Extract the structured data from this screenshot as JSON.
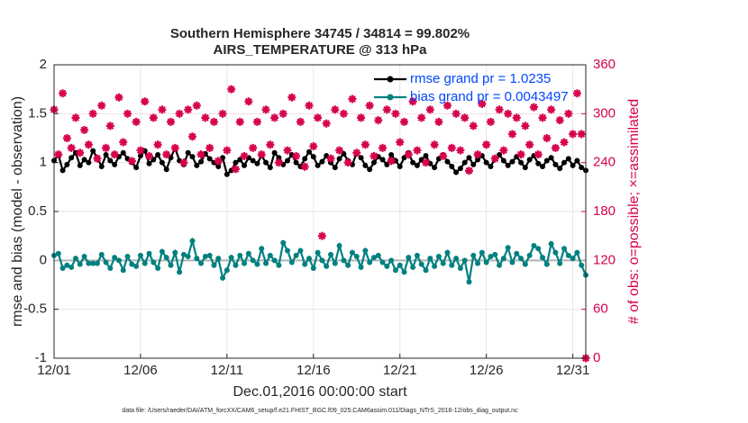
{
  "chart_data": {
    "type": "line",
    "title": "Southern Hemisphere 34745 / 34814 = 99.802%",
    "subtitle": "AIRS_TEMPERATURE @ 313 hPa",
    "xlabel": "Dec.01,2016 00:00:00 start",
    "ylabel": "rmse and bias (model - observation)",
    "y2label": "# of obs: o=possible; ×=assimilated",
    "footnote": "data file: /Users/raeder/DAI/ATM_forcXX/CAM6_setup/f.e21.FHIST_BGC.f09_025.CAM6assim.011/Diags_NTrS_2016-12/obs_diag_output.nc",
    "legend": "northeast",
    "grid": true,
    "xlim": [
      0,
      30.75
    ],
    "xticks": [
      {
        "value": 0,
        "label": "12/01"
      },
      {
        "value": 5,
        "label": "12/06"
      },
      {
        "value": 10,
        "label": "12/11"
      },
      {
        "value": 15,
        "label": "12/16"
      },
      {
        "value": 20,
        "label": "12/21"
      },
      {
        "value": 25,
        "label": "12/26"
      },
      {
        "value": 30,
        "label": "12/31"
      }
    ],
    "ylim": [
      -1,
      2
    ],
    "yticks": [
      -1,
      -0.5,
      0,
      0.5,
      1,
      1.5,
      2
    ],
    "y2lim": [
      0,
      360
    ],
    "y2ticks": [
      0,
      60,
      120,
      180,
      240,
      300,
      360
    ],
    "x": [
      0,
      0.25,
      0.5,
      0.75,
      1,
      1.25,
      1.5,
      1.75,
      2,
      2.25,
      2.5,
      2.75,
      3,
      3.25,
      3.5,
      3.75,
      4,
      4.25,
      4.5,
      4.75,
      5,
      5.25,
      5.5,
      5.75,
      6,
      6.25,
      6.5,
      6.75,
      7,
      7.25,
      7.5,
      7.75,
      8,
      8.25,
      8.5,
      8.75,
      9,
      9.25,
      9.5,
      9.75,
      10,
      10.25,
      10.5,
      10.75,
      11,
      11.25,
      11.5,
      11.75,
      12,
      12.25,
      12.5,
      12.75,
      13,
      13.25,
      13.5,
      13.75,
      14,
      14.25,
      14.5,
      14.75,
      15,
      15.25,
      15.5,
      15.75,
      16,
      16.25,
      16.5,
      16.75,
      17,
      17.25,
      17.5,
      17.75,
      18,
      18.25,
      18.5,
      18.75,
      19,
      19.25,
      19.5,
      19.75,
      20,
      20.25,
      20.5,
      20.75,
      21,
      21.25,
      21.5,
      21.75,
      22,
      22.25,
      22.5,
      22.75,
      23,
      23.25,
      23.5,
      23.75,
      24,
      24.25,
      24.5,
      24.75,
      25,
      25.25,
      25.5,
      25.75,
      26,
      26.25,
      26.5,
      26.75,
      27,
      27.25,
      27.5,
      27.75,
      28,
      28.25,
      28.5,
      28.75,
      29,
      29.25,
      29.5,
      29.75,
      30,
      30.25,
      30.5,
      30.75
    ],
    "series": [
      {
        "name": "rmse grand pr = 1.0235",
        "color": "#000000",
        "values": [
          1.02,
          1.08,
          0.92,
          0.98,
          1.05,
          1.1,
          0.97,
          1.03,
          1.0,
          1.12,
          1.05,
          0.96,
          1.08,
          1.02,
          0.98,
          1.06,
          1.1,
          1.04,
          1.0,
          0.95,
          1.07,
          1.12,
          0.99,
          1.03,
          1.08,
          1.0,
          0.93,
          1.05,
          1.15,
          1.02,
          0.98,
          1.1,
          1.06,
          0.97,
          1.01,
          1.09,
          1.04,
          1.0,
          0.96,
          1.05,
          0.88,
          0.92,
          1.0,
          1.03,
          0.97,
          1.05,
          1.02,
          0.99,
          1.07,
          1.0,
          0.95,
          1.1,
          1.05,
          0.98,
          1.02,
          1.08,
          1.0,
          0.96,
          1.04,
          1.11,
          1.06,
          0.97,
          1.01,
          1.07,
          1.0,
          0.95,
          1.04,
          1.09,
          1.02,
          0.98,
          1.1,
          1.05,
          0.97,
          0.93,
          1.0,
          1.06,
          1.03,
          0.98,
          1.08,
          1.02,
          0.96,
          1.05,
          1.1,
          1.0,
          0.97,
          1.03,
          1.07,
          0.99,
          0.95,
          1.04,
          1.08,
          1.01,
          0.96,
          0.9,
          0.94,
          1.0,
          1.05,
          0.98,
          1.03,
          1.07,
          1.0,
          0.96,
          1.04,
          1.08,
          1.02,
          0.97,
          1.01,
          1.06,
          1.0,
          0.95,
          1.03,
          1.07,
          0.99,
          0.96,
          1.02,
          1.05,
          0.98,
          0.94,
          1.0,
          1.04,
          0.97,
          1.02,
          0.95,
          0.92
        ]
      },
      {
        "name": "bias grand pr = 0.0043497",
        "color": "#008080",
        "values": [
          0.05,
          0.07,
          -0.08,
          -0.05,
          -0.07,
          0.02,
          -0.04,
          0.04,
          -0.03,
          -0.03,
          -0.03,
          0.06,
          -0.02,
          -0.08,
          0.03,
          0.0,
          -0.1,
          0.04,
          -0.04,
          -0.06,
          0.05,
          -0.03,
          0.07,
          -0.02,
          -0.08,
          0.09,
          0.03,
          -0.05,
          0.08,
          -0.12,
          0.06,
          0.04,
          0.2,
          0.02,
          -0.03,
          0.04,
          0.05,
          -0.05,
          0.02,
          -0.18,
          -0.1,
          0.03,
          -0.05,
          0.05,
          -0.03,
          0.07,
          0.0,
          -0.04,
          0.12,
          -0.03,
          0.05,
          0.0,
          -0.05,
          0.18,
          0.1,
          -0.02,
          0.05,
          0.1,
          -0.04,
          0.02,
          -0.08,
          0.08,
          0.0,
          -0.06,
          0.06,
          -0.03,
          0.15,
          0.0,
          -0.05,
          0.08,
          0.04,
          -0.07,
          0.1,
          -0.02,
          0.03,
          0.05,
          -0.02,
          -0.06,
          0.0,
          -0.1,
          -0.05,
          -0.12,
          0.03,
          -0.07,
          0.05,
          -0.04,
          -0.1,
          0.02,
          -0.06,
          0.04,
          -0.03,
          0.08,
          -0.05,
          0.02,
          -0.08,
          0.0,
          -0.22,
          0.05,
          -0.03,
          0.08,
          -0.02,
          0.04,
          0.06,
          -0.05,
          0.02,
          0.13,
          -0.02,
          0.07,
          0.02,
          -0.04,
          0.05,
          0.15,
          0.12,
          0.03,
          -0.04,
          0.17,
          0.08,
          -0.03,
          0.12,
          0.05,
          0.02,
          0.08,
          -0.05,
          -0.15
        ]
      },
      {
        "color": "#d6004f",
        "axis": "y2",
        "values": [
          305,
          250,
          325,
          270,
          258,
          295,
          252,
          280,
          262,
          300,
          245,
          310,
          258,
          285,
          250,
          320,
          265,
          300,
          242,
          290,
          255,
          315,
          248,
          295,
          262,
          305,
          250,
          290,
          258,
          300,
          240,
          305,
          272,
          310,
          250,
          295,
          258,
          290,
          242,
          300,
          255,
          330,
          232,
          290,
          248,
          315,
          258,
          290,
          250,
          305,
          262,
          295,
          240,
          300,
          255,
          320,
          248,
          290,
          235,
          310,
          260,
          295,
          150,
          288,
          245,
          305,
          255,
          300,
          240,
          318,
          252,
          295,
          262,
          310,
          248,
          292,
          258,
          305,
          242,
          300,
          265,
          290,
          250,
          315,
          255,
          295,
          240,
          305,
          262,
          290,
          248,
          310,
          258,
          300,
          255,
          295,
          230,
          285,
          250,
          312,
          262,
          290,
          245,
          305,
          255,
          300,
          275,
          295,
          250,
          285,
          262,
          308,
          250,
          295,
          270,
          305,
          258,
          292,
          265,
          300,
          275,
          325,
          275,
          0
        ]
      }
    ]
  }
}
